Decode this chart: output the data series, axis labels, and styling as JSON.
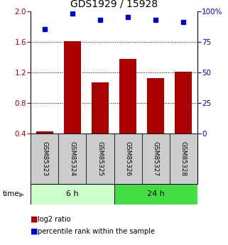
{
  "title": "GDS1929 / 15928",
  "samples": [
    "GSM85323",
    "GSM85324",
    "GSM85325",
    "GSM85326",
    "GSM85327",
    "GSM85328"
  ],
  "log2_ratio": [
    0.43,
    1.61,
    1.07,
    1.37,
    1.12,
    1.21
  ],
  "percentile_rank": [
    85,
    98,
    93,
    95,
    93,
    91
  ],
  "bar_color": "#aa0000",
  "dot_color": "#0000cc",
  "left_ylim": [
    0.4,
    2.0
  ],
  "right_ylim": [
    0,
    100
  ],
  "left_yticks": [
    0.4,
    0.8,
    1.2,
    1.6,
    2.0
  ],
  "right_yticks": [
    0,
    25,
    50,
    75,
    100
  ],
  "right_yticklabels": [
    "0",
    "25",
    "50",
    "75",
    "100%"
  ],
  "grid_lines": [
    0.8,
    1.2,
    1.6
  ],
  "groups": [
    {
      "label": "6 h",
      "indices": [
        0,
        1,
        2
      ],
      "color": "#ccffcc"
    },
    {
      "label": "24 h",
      "indices": [
        3,
        4,
        5
      ],
      "color": "#44dd44"
    }
  ],
  "legend_log2_label": "log2 ratio",
  "legend_pct_label": "percentile rank within the sample",
  "time_label": "time",
  "bg_color": "#ffffff",
  "sample_box_color": "#cccccc",
  "title_fontsize": 10,
  "tick_fontsize": 7.5,
  "label_fontsize": 7.5
}
